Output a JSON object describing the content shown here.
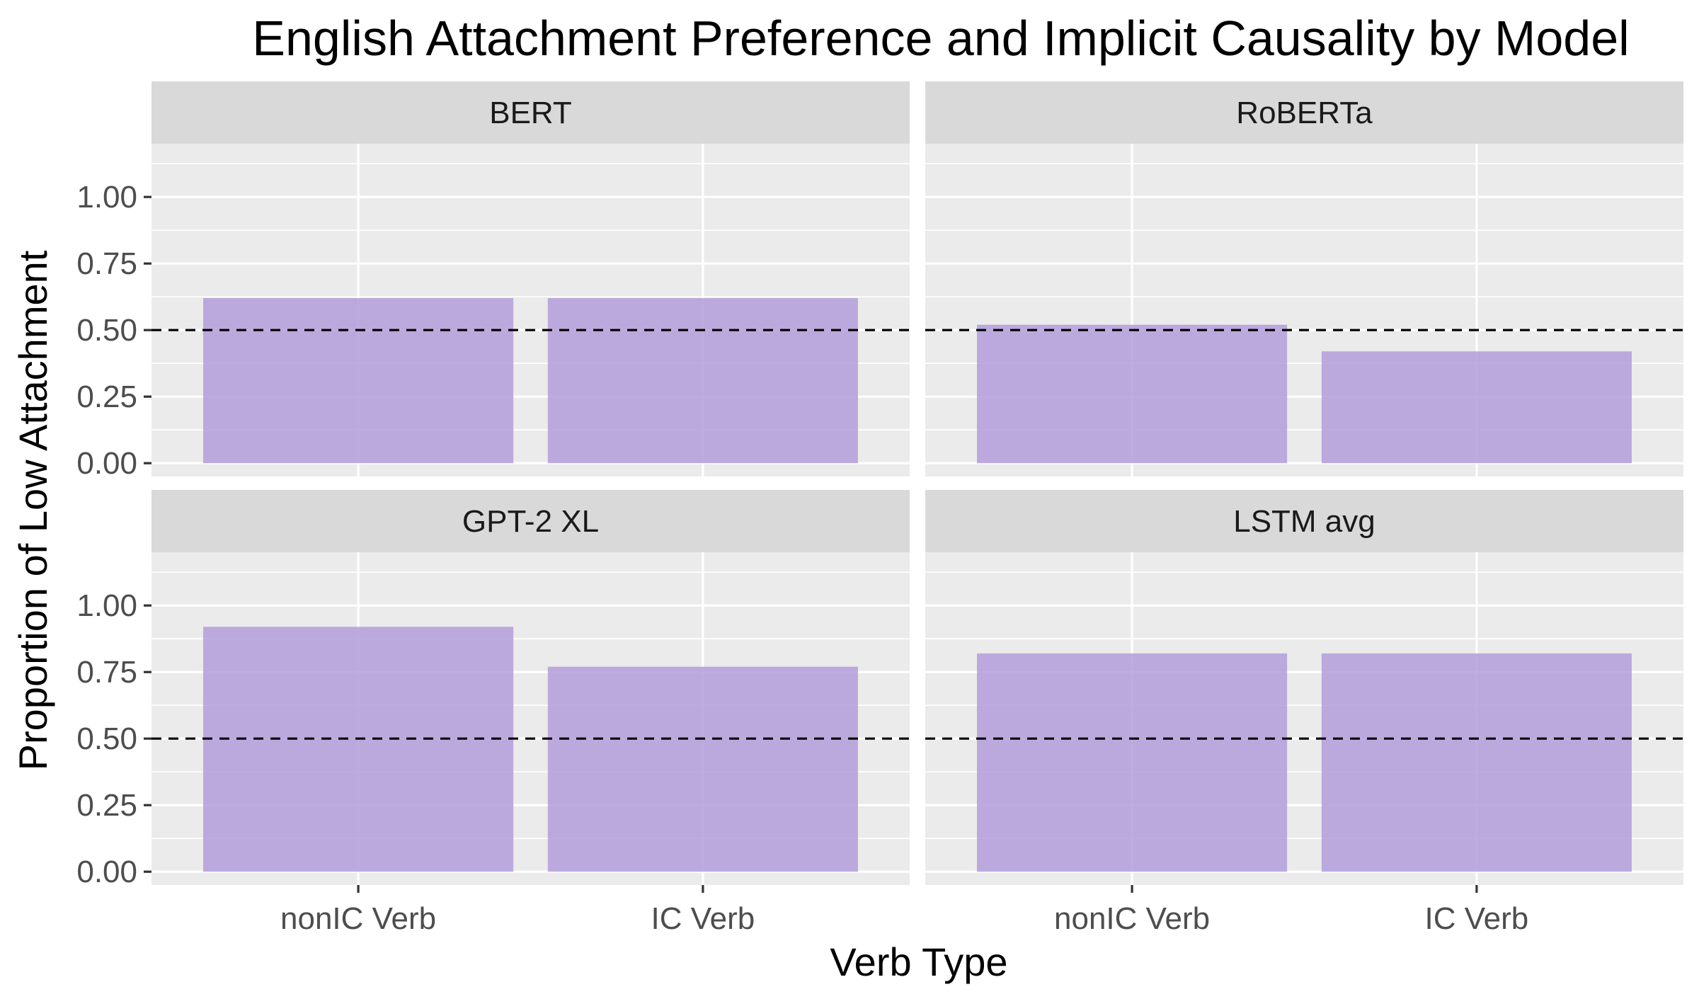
{
  "chart_data": {
    "type": "bar",
    "title": "English Attachment Preference and Implicit Causality by Model",
    "xlabel": "Verb Type",
    "ylabel": "Proportion of Low Attachment",
    "ylim": [
      0,
      1
    ],
    "yticks": [
      "0.00",
      "0.25",
      "0.50",
      "0.75",
      "1.00"
    ],
    "categories": [
      "nonIC Verb",
      "IC Verb"
    ],
    "reference_line": 0.5,
    "bar_color": "#b39ddb",
    "facets": [
      {
        "name": "BERT",
        "values": [
          0.62,
          0.62
        ]
      },
      {
        "name": "RoBERTa",
        "values": [
          0.52,
          0.42
        ]
      },
      {
        "name": "GPT-2 XL",
        "values": [
          0.92,
          0.77
        ]
      },
      {
        "name": "LSTM avg",
        "values": [
          0.82,
          0.82
        ]
      }
    ]
  }
}
